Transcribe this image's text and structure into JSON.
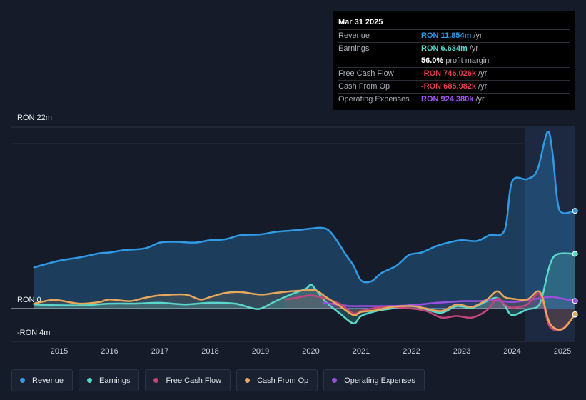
{
  "tooltip": {
    "date": "Mar 31 2025",
    "rows": [
      {
        "label": "Revenue",
        "value": "RON 11.854m",
        "unit": "/yr",
        "color": "#2f9ae6"
      },
      {
        "label": "Earnings",
        "value": "RON 6.634m",
        "unit": "/yr",
        "color": "#5ad7cb"
      },
      {
        "label": "",
        "value": "56.0%",
        "unit": "profit margin",
        "color": "#ffffff"
      },
      {
        "label": "Free Cash Flow",
        "value": "-RON 746.026k",
        "unit": "/yr",
        "color": "#e0414b"
      },
      {
        "label": "Cash From Op",
        "value": "-RON 685.982k",
        "unit": "/yr",
        "color": "#e0414b"
      },
      {
        "label": "Operating Expenses",
        "value": "RON 924.380k",
        "unit": "/yr",
        "color": "#a855f7"
      }
    ]
  },
  "axis": {
    "y_top_label": "RON 22m",
    "y_zero_label": "RON 0",
    "y_bottom_label": "-RON 4m"
  },
  "legend": [
    {
      "label": "Revenue",
      "color": "#2f9ae6"
    },
    {
      "label": "Earnings",
      "color": "#5ad7cb"
    },
    {
      "label": "Free Cash Flow",
      "color": "#c2467a"
    },
    {
      "label": "Cash From Op",
      "color": "#e8a75a"
    },
    {
      "label": "Operating Expenses",
      "color": "#9b4fe0"
    }
  ],
  "chart_data": {
    "type": "area",
    "x_ticks": [
      "2015",
      "2016",
      "2017",
      "2018",
      "2019",
      "2020",
      "2021",
      "2022",
      "2023",
      "2024",
      "2025"
    ],
    "ylim": [
      -4,
      22
    ],
    "unit": "RON m",
    "series": [
      {
        "name": "Revenue",
        "color": "#2f9ae6",
        "points": [
          [
            2014.5,
            5.0
          ],
          [
            2015.0,
            5.8
          ],
          [
            2015.4,
            6.2
          ],
          [
            2015.8,
            6.7
          ],
          [
            2016.0,
            6.8
          ],
          [
            2016.3,
            7.1
          ],
          [
            2016.7,
            7.3
          ],
          [
            2017.0,
            8.0
          ],
          [
            2017.3,
            8.1
          ],
          [
            2017.7,
            8.0
          ],
          [
            2018.0,
            8.3
          ],
          [
            2018.3,
            8.4
          ],
          [
            2018.6,
            8.9
          ],
          [
            2019.0,
            9.0
          ],
          [
            2019.3,
            9.3
          ],
          [
            2019.7,
            9.5
          ],
          [
            2020.0,
            9.7
          ],
          [
            2020.2,
            9.8
          ],
          [
            2020.35,
            9.5
          ],
          [
            2020.5,
            8.4
          ],
          [
            2020.7,
            6.5
          ],
          [
            2020.85,
            5.2
          ],
          [
            2021.0,
            3.4
          ],
          [
            2021.2,
            3.3
          ],
          [
            2021.4,
            4.3
          ],
          [
            2021.7,
            5.2
          ],
          [
            2021.95,
            6.5
          ],
          [
            2022.2,
            6.8
          ],
          [
            2022.5,
            7.6
          ],
          [
            2022.8,
            8.1
          ],
          [
            2023.0,
            8.3
          ],
          [
            2023.3,
            8.2
          ],
          [
            2023.55,
            8.9
          ],
          [
            2023.85,
            9.5
          ],
          [
            2024.0,
            15.4
          ],
          [
            2024.3,
            15.7
          ],
          [
            2024.5,
            16.8
          ],
          [
            2024.7,
            21.4
          ],
          [
            2024.8,
            19.0
          ],
          [
            2024.9,
            13.0
          ],
          [
            2025.0,
            11.6
          ],
          [
            2025.25,
            11.854
          ]
        ]
      },
      {
        "name": "Earnings",
        "color": "#5ad7cb",
        "points": [
          [
            2014.5,
            0.5
          ],
          [
            2015.0,
            0.4
          ],
          [
            2015.5,
            0.4
          ],
          [
            2016.0,
            0.6
          ],
          [
            2016.5,
            0.6
          ],
          [
            2017.0,
            0.7
          ],
          [
            2017.5,
            0.5
          ],
          [
            2018.0,
            0.7
          ],
          [
            2018.5,
            0.6
          ],
          [
            2018.8,
            0.1
          ],
          [
            2019.0,
            0.0
          ],
          [
            2019.3,
            0.9
          ],
          [
            2019.6,
            1.7
          ],
          [
            2019.9,
            2.4
          ],
          [
            2020.0,
            2.9
          ],
          [
            2020.1,
            2.3
          ],
          [
            2020.3,
            0.8
          ],
          [
            2020.6,
            -0.7
          ],
          [
            2020.85,
            -1.8
          ],
          [
            2021.0,
            -0.9
          ],
          [
            2021.3,
            -0.3
          ],
          [
            2021.6,
            0.0
          ],
          [
            2022.0,
            0.4
          ],
          [
            2022.3,
            -0.1
          ],
          [
            2022.6,
            -0.5
          ],
          [
            2022.9,
            0.3
          ],
          [
            2023.2,
            0.1
          ],
          [
            2023.5,
            0.9
          ],
          [
            2023.7,
            1.3
          ],
          [
            2023.85,
            0.4
          ],
          [
            2024.0,
            -0.8
          ],
          [
            2024.3,
            -0.1
          ],
          [
            2024.5,
            0.2
          ],
          [
            2024.6,
            1.5
          ],
          [
            2024.75,
            5.3
          ],
          [
            2024.9,
            6.6
          ],
          [
            2025.25,
            6.634
          ]
        ]
      },
      {
        "name": "Free Cash Flow",
        "color": "#c2467a",
        "points": [
          [
            2019.5,
            1.1
          ],
          [
            2019.8,
            1.4
          ],
          [
            2020.0,
            1.6
          ],
          [
            2020.3,
            1.2
          ],
          [
            2020.6,
            0.5
          ],
          [
            2020.85,
            -0.6
          ],
          [
            2021.0,
            -0.3
          ],
          [
            2021.3,
            0.1
          ],
          [
            2021.6,
            0.2
          ],
          [
            2022.0,
            0.0
          ],
          [
            2022.3,
            -0.3
          ],
          [
            2022.6,
            -1.1
          ],
          [
            2022.9,
            -0.9
          ],
          [
            2023.2,
            -1.1
          ],
          [
            2023.5,
            -0.2
          ],
          [
            2023.7,
            1.2
          ],
          [
            2023.85,
            0.5
          ],
          [
            2024.0,
            0.1
          ],
          [
            2024.3,
            0.5
          ],
          [
            2024.5,
            1.8
          ],
          [
            2024.6,
            1.1
          ],
          [
            2024.75,
            -2.2
          ],
          [
            2025.0,
            -2.4
          ],
          [
            2025.25,
            -0.746
          ]
        ]
      },
      {
        "name": "Cash From Op",
        "color": "#e8a75a",
        "points": [
          [
            2014.5,
            0.6
          ],
          [
            2014.8,
            1.0
          ],
          [
            2015.0,
            1.0
          ],
          [
            2015.4,
            0.6
          ],
          [
            2015.8,
            0.8
          ],
          [
            2016.0,
            1.1
          ],
          [
            2016.4,
            0.9
          ],
          [
            2016.7,
            1.3
          ],
          [
            2017.0,
            1.6
          ],
          [
            2017.5,
            1.7
          ],
          [
            2017.8,
            1.1
          ],
          [
            2018.0,
            1.4
          ],
          [
            2018.3,
            1.9
          ],
          [
            2018.6,
            2.0
          ],
          [
            2019.0,
            1.7
          ],
          [
            2019.3,
            1.9
          ],
          [
            2019.6,
            2.1
          ],
          [
            2019.9,
            2.2
          ],
          [
            2020.1,
            2.2
          ],
          [
            2020.3,
            1.4
          ],
          [
            2020.6,
            0.2
          ],
          [
            2020.85,
            -0.8
          ],
          [
            2021.0,
            -0.4
          ],
          [
            2021.3,
            -0.2
          ],
          [
            2021.6,
            0.2
          ],
          [
            2022.0,
            0.3
          ],
          [
            2022.3,
            0.0
          ],
          [
            2022.6,
            -0.3
          ],
          [
            2022.9,
            0.5
          ],
          [
            2023.2,
            0.2
          ],
          [
            2023.5,
            1.1
          ],
          [
            2023.7,
            2.1
          ],
          [
            2023.85,
            1.4
          ],
          [
            2024.0,
            1.2
          ],
          [
            2024.3,
            1.1
          ],
          [
            2024.5,
            2.1
          ],
          [
            2024.6,
            1.4
          ],
          [
            2024.75,
            -1.8
          ],
          [
            2025.0,
            -2.5
          ],
          [
            2025.25,
            -0.686
          ]
        ]
      },
      {
        "name": "Operating Expenses",
        "color": "#9b4fe0",
        "points": [
          [
            2020.25,
            0.7
          ],
          [
            2020.5,
            0.5
          ],
          [
            2020.8,
            0.3
          ],
          [
            2021.0,
            0.3
          ],
          [
            2021.5,
            0.3
          ],
          [
            2022.0,
            0.4
          ],
          [
            2022.5,
            0.7
          ],
          [
            2023.0,
            0.9
          ],
          [
            2023.3,
            0.9
          ],
          [
            2023.6,
            1.0
          ],
          [
            2024.0,
            0.8
          ],
          [
            2024.3,
            1.0
          ],
          [
            2024.6,
            1.3
          ],
          [
            2024.8,
            1.4
          ],
          [
            2025.0,
            1.2
          ],
          [
            2025.25,
            0.924
          ]
        ]
      }
    ],
    "highlight_x": [
      2024.25,
      2025.25
    ],
    "grid": true
  }
}
